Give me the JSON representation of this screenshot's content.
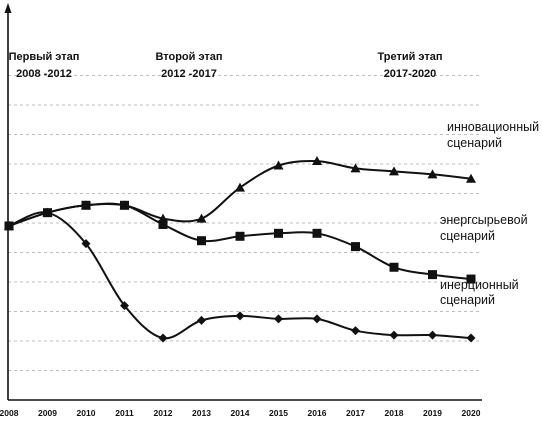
{
  "chart_data": {
    "type": "line",
    "title": "",
    "xlabel": "",
    "ylabel": "",
    "x": [
      2008,
      2009,
      2010,
      2011,
      2012,
      2013,
      2014,
      2015,
      2016,
      2017,
      2018,
      2019,
      2020
    ],
    "x_tick_labels": [
      "2008",
      "2009",
      "2010",
      "2011",
      "2012",
      "2013",
      "2014",
      "2015",
      "2016",
      "2017",
      "2018",
      "2019",
      "2020"
    ],
    "ylim": [
      0,
      10
    ],
    "y_ticks_labeled": false,
    "grid": "horizontal dashed",
    "stages": [
      {
        "line1": "Первый этап",
        "line2": "2008 -2012"
      },
      {
        "line1": "Второй этап",
        "line2": "2012 -2017"
      },
      {
        "line1": "Третий этап",
        "line2": "2017-2020"
      }
    ],
    "series": [
      {
        "name": "инновационный сценарий",
        "label_lines": [
          "инновационный",
          "сценарий"
        ],
        "marker": "triangle",
        "values": [
          5.9,
          6.35,
          6.6,
          6.6,
          6.15,
          6.15,
          7.2,
          7.95,
          8.1,
          7.85,
          7.75,
          7.65,
          7.5
        ]
      },
      {
        "name": "энергсырьевой сценарий",
        "label_lines": [
          "энергсырьевой",
          "сценарий"
        ],
        "marker": "square",
        "values": [
          5.9,
          6.35,
          6.6,
          6.6,
          5.95,
          5.4,
          5.55,
          5.65,
          5.65,
          5.2,
          4.5,
          4.25,
          4.1
        ]
      },
      {
        "name": "инерционный сценарий",
        "label_lines": [
          "инерционный",
          "сценарий"
        ],
        "marker": "diamond",
        "values": [
          5.9,
          6.35,
          5.3,
          3.2,
          2.1,
          2.7,
          2.85,
          2.75,
          2.75,
          2.35,
          2.2,
          2.2,
          2.1
        ]
      }
    ]
  }
}
